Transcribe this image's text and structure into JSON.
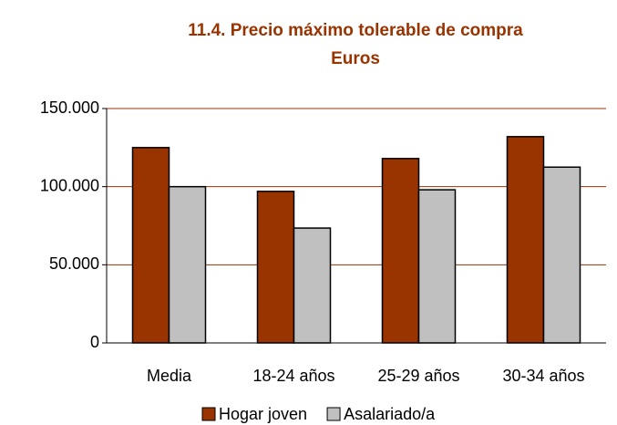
{
  "chart_data": {
    "type": "bar",
    "title": "11.4. Precio máximo tolerable de compra",
    "subtitle": "Euros",
    "categories": [
      "Media",
      "18-24 años",
      "25-29 años",
      "30-34 años"
    ],
    "series": [
      {
        "name": "Hogar joven",
        "color": "#993300",
        "values": [
          125000,
          97000,
          118000,
          132000
        ]
      },
      {
        "name": "Asalariado/a",
        "color": "#c0c0c0",
        "values": [
          100000,
          73500,
          98000,
          112500
        ]
      }
    ],
    "ylim": [
      0,
      150000
    ],
    "yticks": [
      0,
      {
        "value": 50000,
        "label": "50.000"
      },
      {
        "value": 100000,
        "label": "100.000"
      },
      {
        "value": 150000,
        "label": "150.000"
      }
    ],
    "grid": true,
    "legend": "bottom"
  }
}
